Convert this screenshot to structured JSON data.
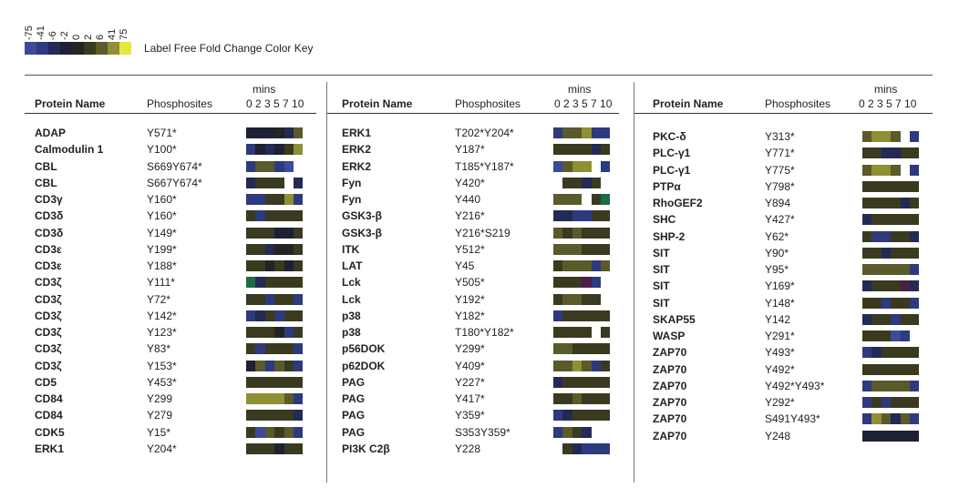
{
  "color_key": {
    "ticks": [
      "-75",
      "-41",
      "-6",
      "-2",
      "0",
      "2",
      "6",
      "41",
      "75"
    ],
    "colors": [
      "#3b4a9a",
      "#2e3a7e",
      "#222a55",
      "#1e2033",
      "#242424",
      "#3a3a20",
      "#5b5a2a",
      "#8f8f34",
      "#e6e640"
    ],
    "title": "Label Free Fold Change Color Key"
  },
  "headers": {
    "mins": "mins",
    "protein": "Protein Name",
    "sites": "Phosphosites",
    "times": "0 2 3 5 7 10"
  },
  "chart_data": {
    "type": "heatmap",
    "title": "",
    "x": [
      "0",
      "2",
      "3",
      "5",
      "7",
      "10"
    ],
    "xlabel": "mins",
    "color_scale": [
      -75,
      -41,
      -6,
      -2,
      0,
      2,
      6,
      41,
      75
    ],
    "panels": [
      {
        "rows": [
          {
            "protein": "ADAP",
            "site": "Y571*",
            "values": [
              -2,
              -2,
              -2,
              0,
              -6,
              6
            ]
          },
          {
            "protein": "Calmodulin 1",
            "site": "Y100*",
            "values": [
              -41,
              -2,
              -6,
              -2,
              2,
              41
            ]
          },
          {
            "protein": "CBL",
            "site": "S669Y674*",
            "values": [
              -41,
              6,
              6,
              -41,
              -75,
              null
            ]
          },
          {
            "protein": "CBL",
            "site": "S667Y674*",
            "values": [
              -6,
              2,
              2,
              2,
              null,
              -6
            ]
          },
          {
            "protein": "CD3γ",
            "site": "Y160*",
            "values": [
              -41,
              -41,
              2,
              2,
              41,
              -41
            ]
          },
          {
            "protein": "CD3δ",
            "site": "Y160*",
            "values": [
              2,
              -41,
              2,
              2,
              2,
              2
            ]
          },
          {
            "protein": "CD3δ",
            "site": "Y149*",
            "values": [
              2,
              2,
              2,
              -2,
              -2,
              2
            ]
          },
          {
            "protein": "CD3ε",
            "site": "Y199*",
            "values": [
              2,
              2,
              -6,
              0,
              0,
              2
            ]
          },
          {
            "protein": "CD3ε",
            "site": "Y188*",
            "values": [
              2,
              2,
              0,
              2,
              -2,
              2
            ]
          },
          {
            "protein": "CD3ζ",
            "site": "Y111*",
            "values": [
              "G",
              -6,
              2,
              2,
              2,
              2
            ]
          },
          {
            "protein": "CD3ζ",
            "site": "Y72*",
            "values": [
              2,
              2,
              -41,
              2,
              2,
              -41
            ]
          },
          {
            "protein": "CD3ζ",
            "site": "Y142*",
            "values": [
              -41,
              -6,
              2,
              -41,
              2,
              2
            ]
          },
          {
            "protein": "CD3ζ",
            "site": "Y123*",
            "values": [
              2,
              2,
              2,
              0,
              -41,
              2
            ]
          },
          {
            "protein": "CD3ζ",
            "site": "Y83*",
            "values": [
              2,
              -41,
              2,
              2,
              2,
              -41
            ]
          },
          {
            "protein": "CD3ζ",
            "site": "Y153*",
            "values": [
              -2,
              6,
              -41,
              6,
              2,
              -41
            ]
          },
          {
            "protein": "CD5",
            "site": "Y453*",
            "values": [
              2,
              2,
              2,
              2,
              2,
              2
            ]
          },
          {
            "protein": "CD84",
            "site": "Y299",
            "values": [
              41,
              41,
              41,
              41,
              6,
              -41
            ]
          },
          {
            "protein": "CD84",
            "site": "Y279",
            "values": [
              2,
              2,
              2,
              2,
              2,
              -6
            ]
          },
          {
            "protein": "CDK5",
            "site": "Y15*",
            "values": [
              2,
              -75,
              6,
              2,
              6,
              -41
            ]
          },
          {
            "protein": "ERK1",
            "site": "Y204*",
            "values": [
              2,
              2,
              2,
              -2,
              2,
              2
            ]
          }
        ]
      },
      {
        "rows": [
          {
            "protein": "ERK1",
            "site": "T202*Y204*",
            "values": [
              -41,
              6,
              6,
              41,
              -41,
              -41
            ]
          },
          {
            "protein": "ERK2",
            "site": "Y187*",
            "values": [
              2,
              2,
              2,
              2,
              -6,
              2
            ]
          },
          {
            "protein": "ERK2",
            "site": "T185*Y187*",
            "values": [
              -75,
              6,
              41,
              41,
              null,
              -41
            ]
          },
          {
            "protein": "Fyn",
            "site": "Y420*",
            "values": [
              null,
              2,
              2,
              -6,
              2,
              null
            ]
          },
          {
            "protein": "Fyn",
            "site": "Y440",
            "values": [
              6,
              6,
              6,
              null,
              2,
              "G"
            ]
          },
          {
            "protein": "GSK3-β",
            "site": "Y216*",
            "values": [
              -6,
              -6,
              -41,
              -41,
              2,
              2
            ]
          },
          {
            "protein": "GSK3-β",
            "site": "Y216*S219",
            "values": [
              6,
              2,
              6,
              2,
              2,
              2
            ]
          },
          {
            "protein": "ITK",
            "site": "Y512*",
            "values": [
              6,
              6,
              6,
              2,
              2,
              2
            ]
          },
          {
            "protein": "LAT",
            "site": "Y45",
            "values": [
              2,
              6,
              6,
              6,
              -41,
              6
            ]
          },
          {
            "protein": "Lck",
            "site": "Y505*",
            "values": [
              2,
              2,
              2,
              "P",
              -41,
              null
            ]
          },
          {
            "protein": "Lck",
            "site": "Y192*",
            "values": [
              2,
              6,
              6,
              2,
              2,
              null
            ]
          },
          {
            "protein": "p38",
            "site": "Y182*",
            "values": [
              -41,
              2,
              2,
              2,
              2,
              2
            ]
          },
          {
            "protein": "p38",
            "site": "T180*Y182*",
            "values": [
              2,
              2,
              2,
              2,
              null,
              2
            ]
          },
          {
            "protein": "p56DOK",
            "site": "Y299*",
            "values": [
              6,
              6,
              2,
              2,
              2,
              2
            ]
          },
          {
            "protein": "p62DOK",
            "site": "Y409*",
            "values": [
              6,
              6,
              41,
              6,
              -41,
              2
            ]
          },
          {
            "protein": "PAG",
            "site": "Y227*",
            "values": [
              -6,
              2,
              2,
              2,
              2,
              2
            ]
          },
          {
            "protein": "PAG",
            "site": "Y417*",
            "values": [
              2,
              2,
              6,
              2,
              2,
              2
            ]
          },
          {
            "protein": "PAG",
            "site": "Y359*",
            "values": [
              -41,
              -6,
              2,
              2,
              2,
              2
            ]
          },
          {
            "protein": "PAG",
            "site": "S353Y359*",
            "values": [
              -41,
              6,
              2,
              -6,
              null,
              null
            ]
          },
          {
            "protein": "PI3K C2β",
            "site": "Y228",
            "values": [
              null,
              2,
              -6,
              -41,
              -41,
              -41
            ]
          }
        ]
      },
      {
        "rows": [
          {
            "protein": "PKC-δ",
            "site": "Y313*",
            "values": [
              6,
              41,
              41,
              6,
              null,
              -41
            ]
          },
          {
            "protein": "PLC-γ1",
            "site": "Y771*",
            "values": [
              2,
              2,
              -6,
              -6,
              2,
              2
            ]
          },
          {
            "protein": "PLC-γ1",
            "site": "Y775*",
            "values": [
              6,
              41,
              41,
              6,
              null,
              -41
            ]
          },
          {
            "protein": "PTPα",
            "site": "Y798*",
            "values": [
              2,
              2,
              2,
              2,
              2,
              2
            ]
          },
          {
            "protein": "RhoGEF2",
            "site": "Y894",
            "values": [
              2,
              2,
              2,
              2,
              -6,
              2
            ]
          },
          {
            "protein": "SHC",
            "site": "Y427*",
            "values": [
              -6,
              2,
              2,
              2,
              2,
              2
            ]
          },
          {
            "protein": "SHP-2",
            "site": "Y62*",
            "values": [
              2,
              -41,
              -41,
              2,
              2,
              -6
            ]
          },
          {
            "protein": "SIT",
            "site": "Y90*",
            "values": [
              2,
              2,
              -6,
              2,
              2,
              2
            ]
          },
          {
            "protein": "SIT",
            "site": "Y95*",
            "values": [
              6,
              6,
              6,
              6,
              6,
              -41
            ]
          },
          {
            "protein": "SIT",
            "site": "Y169*",
            "values": [
              -6,
              2,
              2,
              2,
              "P",
              -6
            ]
          },
          {
            "protein": "SIT",
            "site": "Y148*",
            "values": [
              2,
              2,
              -41,
              2,
              2,
              -41
            ]
          },
          {
            "protein": "SKAP55",
            "site": "Y142",
            "values": [
              -6,
              2,
              2,
              -41,
              2,
              2
            ]
          },
          {
            "protein": "WASP",
            "site": "Y291*",
            "values": [
              2,
              2,
              2,
              -75,
              -41,
              null
            ]
          },
          {
            "protein": "ZAP70",
            "site": "Y493*",
            "values": [
              -41,
              -6,
              2,
              2,
              2,
              2
            ]
          },
          {
            "protein": "ZAP70",
            "site": "Y492*",
            "values": [
              2,
              2,
              2,
              2,
              2,
              2
            ]
          },
          {
            "protein": "ZAP70",
            "site": "Y492*Y493*",
            "values": [
              -41,
              6,
              6,
              6,
              6,
              -41
            ]
          },
          {
            "protein": "ZAP70",
            "site": "Y292*",
            "values": [
              -41,
              2,
              -41,
              2,
              2,
              2
            ]
          },
          {
            "protein": "ZAP70",
            "site": "S491Y493*",
            "values": [
              -41,
              41,
              6,
              -6,
              6,
              -41
            ]
          },
          {
            "protein": "ZAP70",
            "site": "Y248",
            "values": [
              -2,
              -2,
              -2,
              -2,
              -2,
              -2
            ]
          }
        ]
      }
    ]
  }
}
